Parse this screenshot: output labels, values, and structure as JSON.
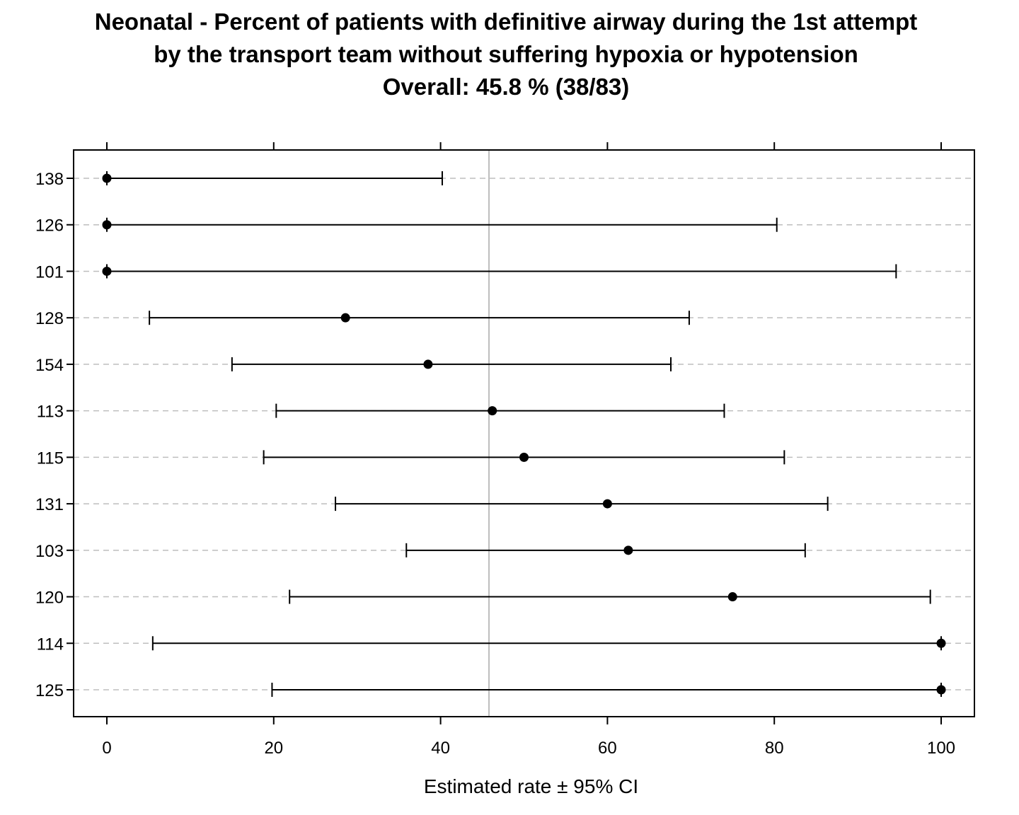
{
  "chart_data": {
    "type": "dot-errorbar",
    "title_lines": [
      "Neonatal - Percent of patients with definitive airway during the 1st attempt",
      "by the transport team without suffering hypoxia or hypotension",
      "Overall:  45.8 %  (38/83)"
    ],
    "overall_rate": 45.8,
    "xlabel": "Estimated rate ±  95% CI",
    "ylabel": "",
    "xlim": [
      0,
      100
    ],
    "x_ticks": [
      0,
      20,
      40,
      60,
      80,
      100
    ],
    "grid": "dashed horizontal per category",
    "categories": [
      "138",
      "126",
      "101",
      "128",
      "154",
      "113",
      "115",
      "131",
      "103",
      "120",
      "114",
      "125"
    ],
    "estimates": [
      0,
      0,
      0,
      28.6,
      38.5,
      46.2,
      50.0,
      60.0,
      62.5,
      75.0,
      100,
      100
    ],
    "lower": [
      0,
      0,
      0,
      5.1,
      15.0,
      20.3,
      18.8,
      27.4,
      35.9,
      21.9,
      5.5,
      19.8
    ],
    "upper": [
      40.2,
      80.3,
      94.6,
      69.8,
      67.6,
      74.0,
      81.2,
      86.4,
      83.7,
      98.7,
      100,
      100
    ]
  },
  "colors": {
    "points": "#000000",
    "ci_lines": "#000000",
    "reference_line": "#bebebe",
    "grid": "#bebebe",
    "frame": "#000000"
  }
}
